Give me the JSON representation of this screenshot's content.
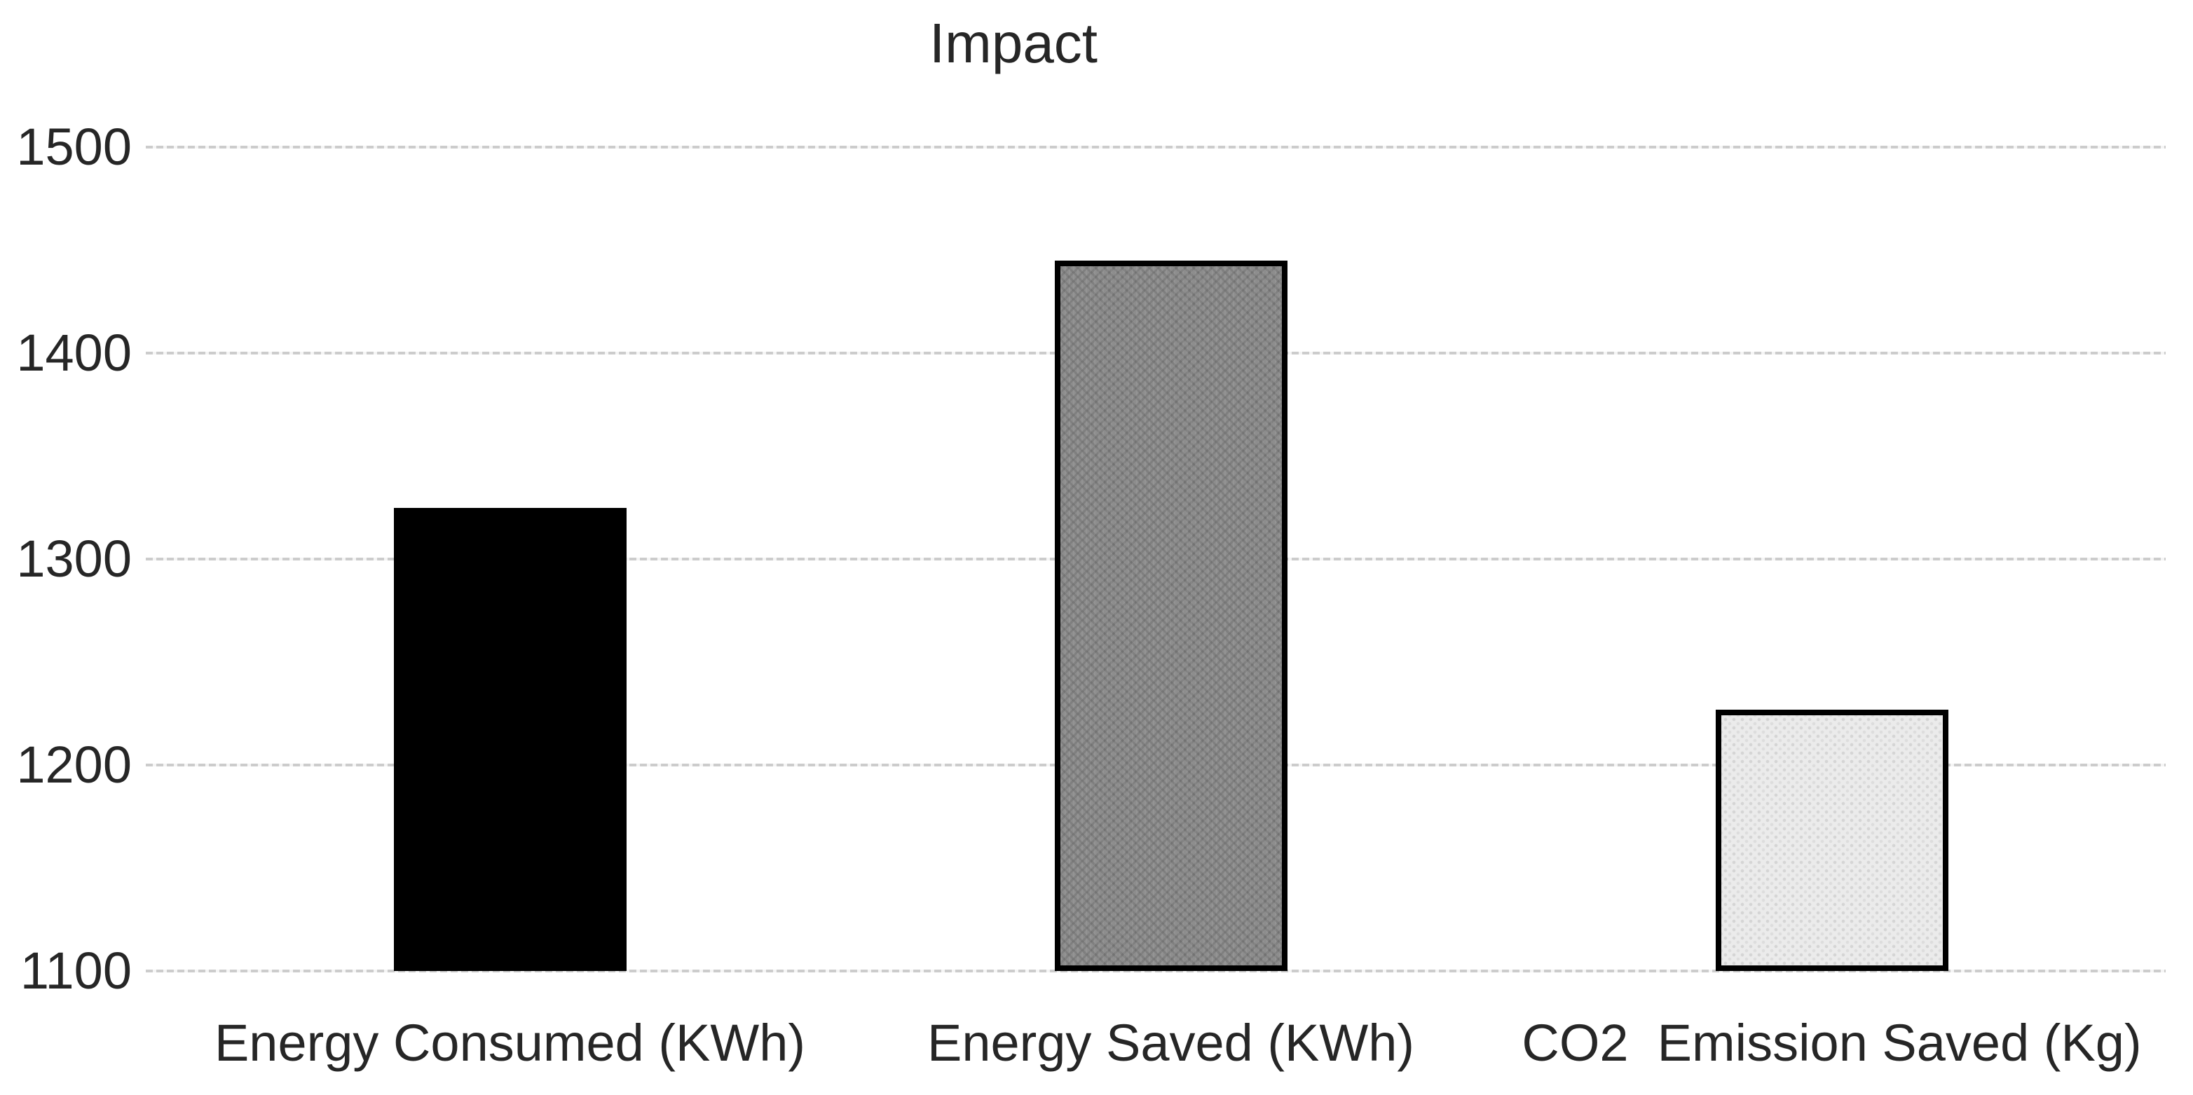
{
  "chart_data": {
    "type": "bar",
    "title": "Impact",
    "categories": [
      "Energy Consumed (KWh)",
      "Energy Saved (KWh)",
      "CO2  Emission Saved (Kg)"
    ],
    "values": [
      1325,
      1445,
      1227
    ],
    "ylim": [
      1100,
      1500
    ],
    "yticks": [
      1100,
      1200,
      1300,
      1400,
      1500
    ],
    "xlabel": "",
    "ylabel": "",
    "grid": true,
    "legend": false,
    "bar_styles": [
      {
        "name": "solid-black",
        "fill": "#000000",
        "border": "#000000",
        "texture": "solid"
      },
      {
        "name": "medium-gray-hatch",
        "fill": "#8d8d8d",
        "border": "#000000",
        "texture": "hatch"
      },
      {
        "name": "light-gray-dots",
        "fill": "#ebebeb",
        "border": "#000000",
        "texture": "dots"
      }
    ],
    "colors": {
      "background": "#ffffff",
      "text": "#262626",
      "gridline": "#cccccc"
    }
  }
}
